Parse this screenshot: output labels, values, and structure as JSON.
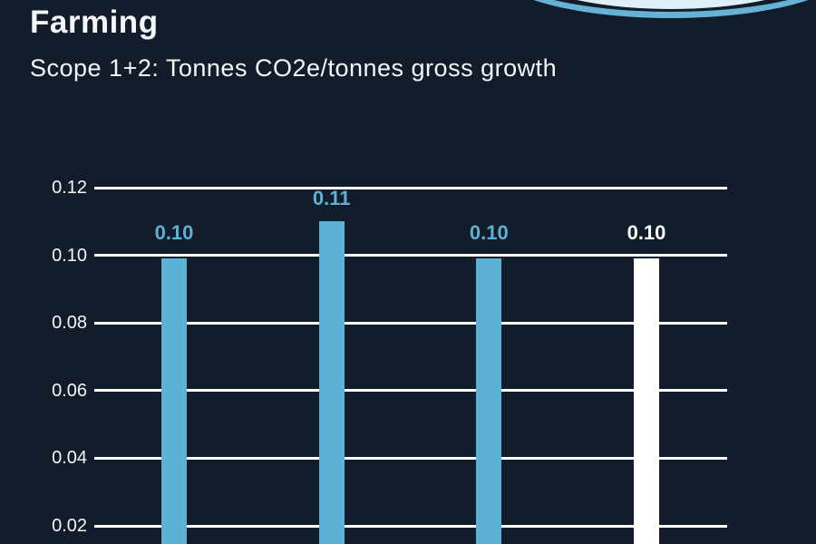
{
  "header": {
    "title": "Farming",
    "subtitle": "Scope 1+2: Tonnes CO2e/tonnes gross growth"
  },
  "decoration": {
    "description": "partial ellipse badge cropped at top edge",
    "ring_color": "#66B2D6",
    "fill_color": "#DFEFF7"
  },
  "colors": {
    "background": "#131C2A",
    "text": "#F4F6F8",
    "gridline": "#FFFFFF",
    "bar_blue": "#5BB2D4",
    "bar_white": "#FFFFFF"
  },
  "chart_data": {
    "type": "bar",
    "title": "Farming",
    "subtitle": "Scope 1+2: Tonnes CO2e/tonnes gross growth",
    "xlabel": "",
    "ylabel": "",
    "grid": true,
    "legend": false,
    "ylim": [
      0,
      0.12
    ],
    "y_ticks": [
      {
        "label": "0.12",
        "value": 0.12
      },
      {
        "label": "0.10",
        "value": 0.1
      },
      {
        "label": "0.08",
        "value": 0.08
      },
      {
        "label": "0.06",
        "value": 0.06
      },
      {
        "label": "0.04",
        "value": 0.04
      },
      {
        "label": "0.02",
        "value": 0.02
      }
    ],
    "bars": [
      {
        "label": "0.10",
        "value": 0.1,
        "color": "#5BB2D4"
      },
      {
        "label": "0.11",
        "value": 0.11,
        "color": "#5BB2D4"
      },
      {
        "label": "0.10",
        "value": 0.1,
        "color": "#5BB2D4"
      },
      {
        "label": "0.10",
        "value": 0.1,
        "color": "#FFFFFF"
      }
    ],
    "x_tick_labels_visible": false,
    "bottom_of_bars_cropped": true
  }
}
